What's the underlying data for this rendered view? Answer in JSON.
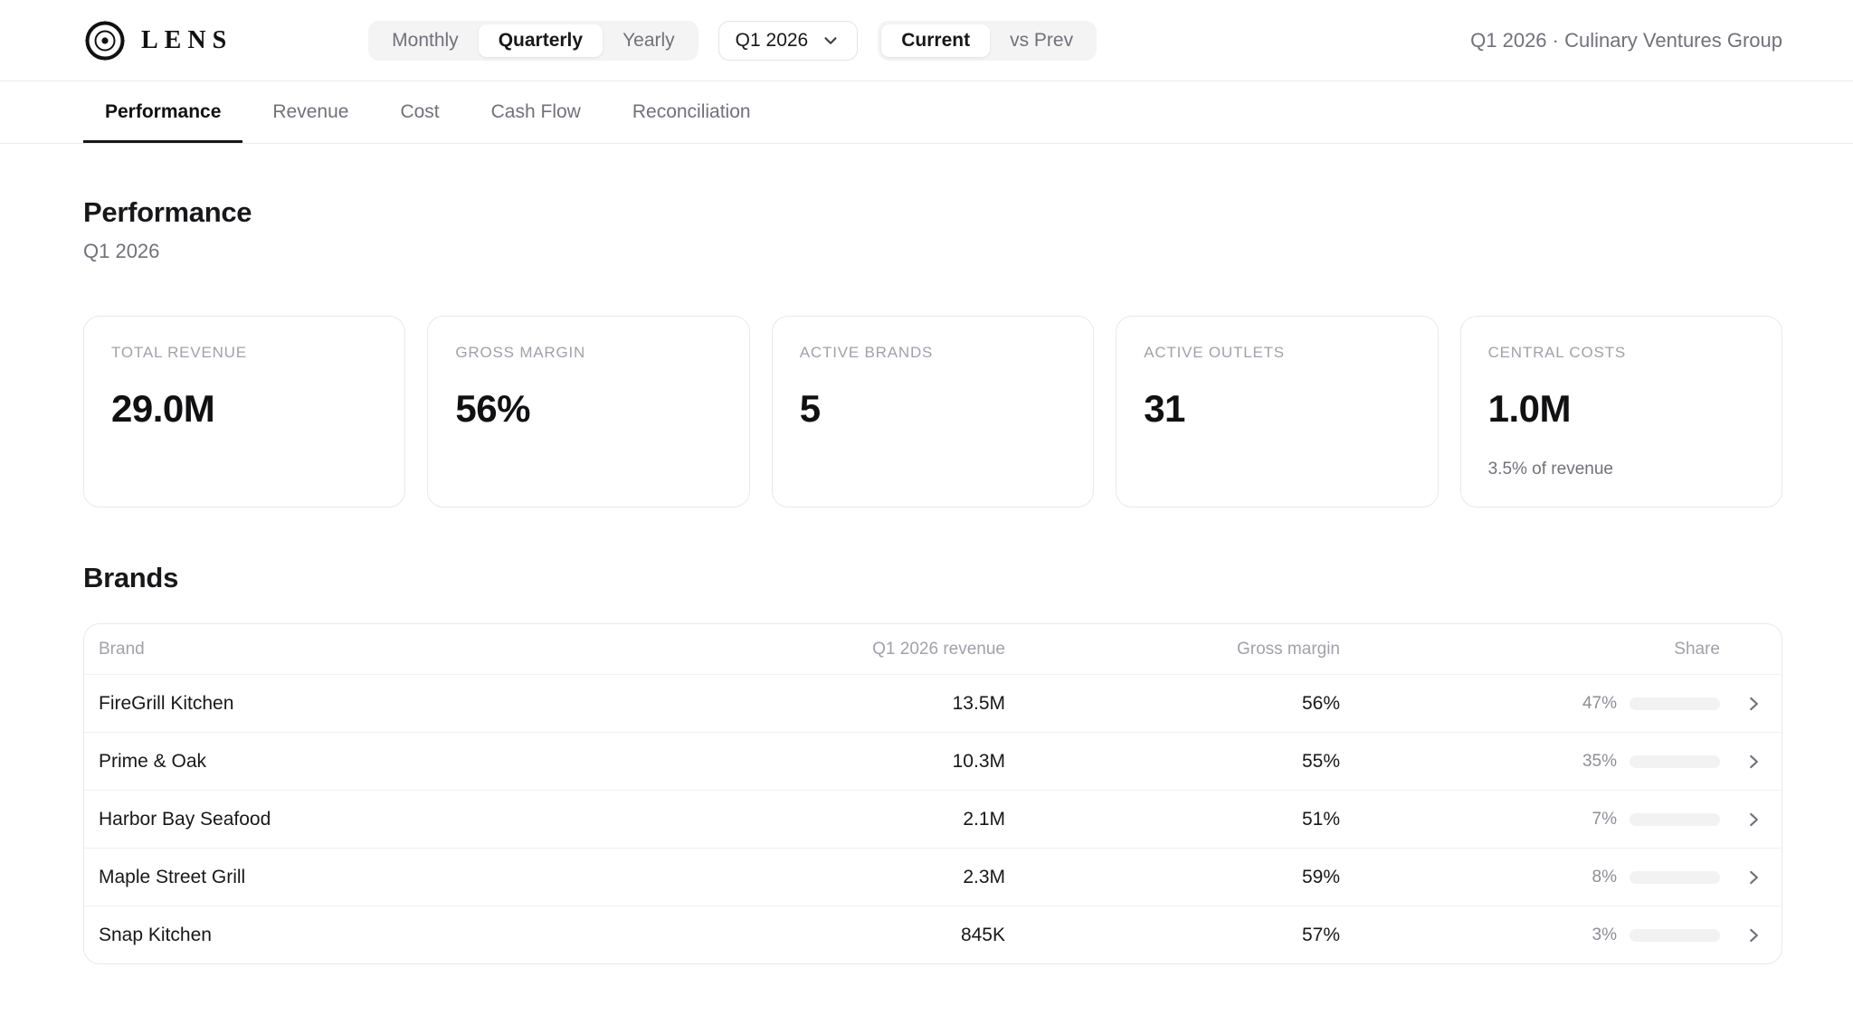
{
  "brand": {
    "name": "LENS",
    "logo_icon": "lens-target-icon"
  },
  "topbar": {
    "period_granularity": {
      "options": [
        "Monthly",
        "Quarterly",
        "Yearly"
      ],
      "active": "Quarterly"
    },
    "period_select": {
      "value": "Q1 2026",
      "icon": "chevron-down-icon"
    },
    "compare_mode": {
      "options": [
        "Current",
        "vs Prev"
      ],
      "active": "Current"
    },
    "context": "Q1 2026 · Culinary Ventures Group"
  },
  "nav": {
    "tabs": [
      "Performance",
      "Revenue",
      "Cost",
      "Cash Flow",
      "Reconciliation"
    ],
    "active": "Performance"
  },
  "page": {
    "title": "Performance",
    "subtitle": "Q1 2026"
  },
  "kpis": [
    {
      "label": "TOTAL REVENUE",
      "value": "29.0M",
      "sub": ""
    },
    {
      "label": "GROSS MARGIN",
      "value": "56%",
      "sub": ""
    },
    {
      "label": "ACTIVE BRANDS",
      "value": "5",
      "sub": ""
    },
    {
      "label": "ACTIVE OUTLETS",
      "value": "31",
      "sub": ""
    },
    {
      "label": "CENTRAL COSTS",
      "value": "1.0M",
      "sub": "3.5% of revenue"
    }
  ],
  "brands_section": {
    "title": "Brands",
    "table": {
      "columns": [
        "Brand",
        "Q1 2026 revenue",
        "Gross margin",
        "Share"
      ],
      "rows": [
        {
          "name": "FireGrill Kitchen",
          "revenue": "13.5M",
          "margin": "56%",
          "share_pct": 47,
          "share_label": "47%"
        },
        {
          "name": "Prime & Oak",
          "revenue": "10.3M",
          "margin": "55%",
          "share_pct": 35,
          "share_label": "35%"
        },
        {
          "name": "Harbor Bay Seafood",
          "revenue": "2.1M",
          "margin": "51%",
          "share_pct": 7,
          "share_label": "7%"
        },
        {
          "name": "Maple Street Grill",
          "revenue": "2.3M",
          "margin": "59%",
          "share_pct": 8,
          "share_label": "8%"
        },
        {
          "name": "Snap Kitchen",
          "revenue": "845K",
          "margin": "57%",
          "share_pct": 3,
          "share_label": "3%"
        }
      ]
    }
  },
  "colors": {
    "text_primary": "#18181b",
    "text_secondary": "#71717a",
    "text_muted": "#a1a1aa",
    "border": "#e9e9eb",
    "segment_bg": "#f4f4f5",
    "bar_track": "#f2f2f3",
    "bar_fill": "#1a1a1c",
    "active_underline": "#18181b"
  }
}
